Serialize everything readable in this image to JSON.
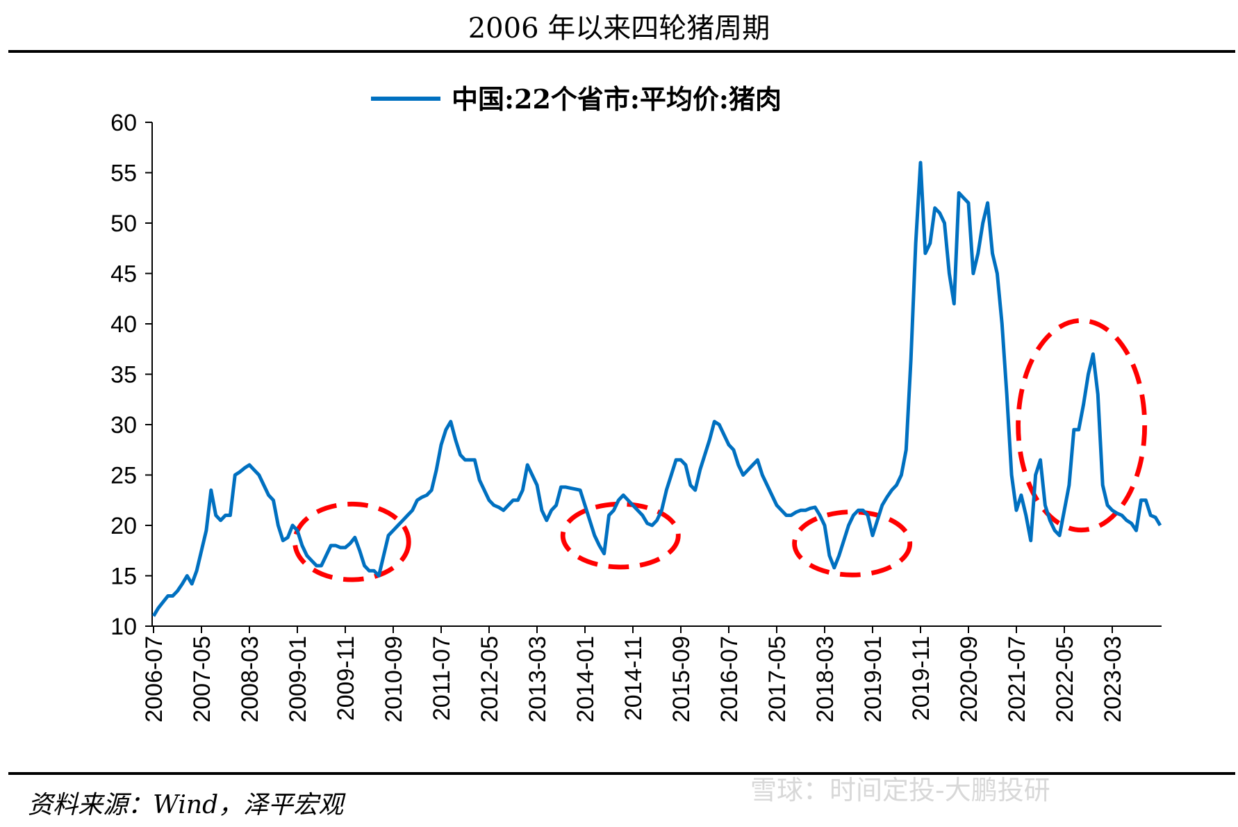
{
  "chart_data": {
    "type": "line",
    "title": "2006 年以来四轮猪周期",
    "source": "资料来源：Wind，泽平宏观",
    "watermark": "雪球：时间定投-大鹏投研",
    "x": [
      "2006-07",
      "2006-08",
      "2006-09",
      "2006-10",
      "2006-11",
      "2006-12",
      "2007-01",
      "2007-02",
      "2007-03",
      "2007-04",
      "2007-05",
      "2007-06",
      "2007-07",
      "2007-08",
      "2007-09",
      "2007-10",
      "2007-11",
      "2007-12",
      "2008-01",
      "2008-02",
      "2008-03",
      "2008-04",
      "2008-05",
      "2008-06",
      "2008-07",
      "2008-08",
      "2008-09",
      "2008-10",
      "2008-11",
      "2008-12",
      "2009-01",
      "2009-02",
      "2009-03",
      "2009-04",
      "2009-05",
      "2009-06",
      "2009-07",
      "2009-08",
      "2009-09",
      "2009-10",
      "2009-11",
      "2009-12",
      "2010-01",
      "2010-02",
      "2010-03",
      "2010-04",
      "2010-05",
      "2010-06",
      "2010-07",
      "2010-08",
      "2010-09",
      "2010-10",
      "2010-11",
      "2010-12",
      "2011-01",
      "2011-02",
      "2011-03",
      "2011-04",
      "2011-05",
      "2011-06",
      "2011-07",
      "2011-08",
      "2011-09",
      "2011-10",
      "2011-11",
      "2011-12",
      "2012-01",
      "2012-02",
      "2012-03",
      "2012-04",
      "2012-05",
      "2012-06",
      "2012-07",
      "2012-08",
      "2012-09",
      "2012-10",
      "2012-11",
      "2012-12",
      "2013-01",
      "2013-02",
      "2013-03",
      "2013-04",
      "2013-05",
      "2013-06",
      "2013-07",
      "2013-08",
      "2013-09",
      "2013-10",
      "2013-11",
      "2013-12",
      "2014-01",
      "2014-02",
      "2014-03",
      "2014-04",
      "2014-05",
      "2014-06",
      "2014-07",
      "2014-08",
      "2014-09",
      "2014-10",
      "2014-11",
      "2014-12",
      "2015-01",
      "2015-02",
      "2015-03",
      "2015-04",
      "2015-05",
      "2015-06",
      "2015-07",
      "2015-08",
      "2015-09",
      "2015-10",
      "2015-11",
      "2015-12",
      "2016-01",
      "2016-02",
      "2016-03",
      "2016-04",
      "2016-05",
      "2016-06",
      "2016-07",
      "2016-08",
      "2016-09",
      "2016-10",
      "2016-11",
      "2016-12",
      "2017-01",
      "2017-02",
      "2017-03",
      "2017-04",
      "2017-05",
      "2017-06",
      "2017-07",
      "2017-08",
      "2017-09",
      "2017-10",
      "2017-11",
      "2017-12",
      "2018-01",
      "2018-02",
      "2018-03",
      "2018-04",
      "2018-05",
      "2018-06",
      "2018-07",
      "2018-08",
      "2018-09",
      "2018-10",
      "2018-11",
      "2018-12",
      "2019-01",
      "2019-02",
      "2019-03",
      "2019-04",
      "2019-05",
      "2019-06",
      "2019-07",
      "2019-08",
      "2019-09",
      "2019-10",
      "2019-11",
      "2019-12",
      "2020-01",
      "2020-02",
      "2020-03",
      "2020-04",
      "2020-05",
      "2020-06",
      "2020-07",
      "2020-08",
      "2020-09",
      "2020-10",
      "2020-11",
      "2020-12",
      "2021-01",
      "2021-02",
      "2021-03",
      "2021-04",
      "2021-05",
      "2021-06",
      "2021-07",
      "2021-08",
      "2021-09",
      "2021-10",
      "2021-11",
      "2021-12",
      "2022-01",
      "2022-02",
      "2022-03",
      "2022-04",
      "2022-05",
      "2022-06",
      "2022-07",
      "2022-08",
      "2022-09",
      "2022-10",
      "2022-11",
      "2022-12",
      "2023-01",
      "2023-02",
      "2023-03",
      "2023-04",
      "2023-05",
      "2023-06",
      "2023-07",
      "2023-08",
      "2023-09",
      "2023-10",
      "2023-11",
      "2023-12",
      "2024-01"
    ],
    "series": [
      {
        "name": "中国:22个省市:平均价:猪肉",
        "color": "#0070c0",
        "values": [
          11,
          11.8,
          12.4,
          13,
          13,
          13.5,
          14.2,
          15,
          14.2,
          15.5,
          17.5,
          19.5,
          23.5,
          21,
          20.5,
          21,
          21,
          25,
          25.3,
          25.7,
          26,
          25.5,
          25,
          24,
          23,
          22.5,
          20,
          18.5,
          18.8,
          20,
          19.5,
          18,
          17,
          16.5,
          16,
          16,
          17,
          18,
          18,
          17.8,
          17.8,
          18.2,
          18.8,
          17.5,
          16,
          15.5,
          15.5,
          15,
          17,
          19,
          19.5,
          20,
          20.5,
          21,
          21.5,
          22.5,
          22.8,
          23,
          23.5,
          25.5,
          28,
          29.5,
          30.3,
          28.5,
          27,
          26.5,
          26.5,
          26.5,
          24.5,
          23.5,
          22.5,
          22,
          21.8,
          21.5,
          22,
          22.5,
          22.5,
          23.5,
          26,
          25,
          24,
          21.5,
          20.5,
          21.5,
          22,
          23.8,
          23.8,
          23.7,
          23.6,
          23.5,
          22,
          20.5,
          19,
          18,
          17.2,
          21,
          21.5,
          22.5,
          23,
          22.5,
          22,
          21.5,
          21,
          20.2,
          20,
          20.5,
          21.5,
          23.5,
          25,
          26.5,
          26.5,
          26,
          24,
          23.5,
          25.5,
          27,
          28.5,
          30.3,
          30,
          29,
          28,
          27.5,
          26,
          25,
          25.5,
          26,
          26.5,
          25,
          24,
          23,
          22,
          21.5,
          21,
          21,
          21.3,
          21.5,
          21.5,
          21.7,
          21.8,
          21,
          20,
          17,
          15.8,
          17,
          18.5,
          20,
          21,
          21.5,
          21.5,
          21,
          19,
          20.5,
          22,
          22.8,
          23.5,
          24,
          25,
          27.5,
          36.5,
          48,
          56,
          47,
          48,
          51.5,
          51,
          50,
          45,
          42,
          53,
          52.5,
          52,
          45,
          47,
          50,
          52,
          47,
          45,
          40,
          33,
          25,
          21.5,
          23,
          21,
          18.5,
          25,
          26.5,
          22,
          20.5,
          19.5,
          19,
          21.5,
          24,
          29.5,
          29.5,
          32,
          35,
          37,
          33,
          24,
          22,
          21.5,
          21.2,
          21,
          20.5,
          20.2,
          19.5,
          22.5,
          22.5,
          21,
          20.8,
          20
        ]
      }
    ],
    "xticks": [
      "2006-07",
      "2007-05",
      "2008-03",
      "2009-01",
      "2009-11",
      "2010-09",
      "2011-07",
      "2012-05",
      "2013-03",
      "2014-01",
      "2014-11",
      "2015-09",
      "2016-07",
      "2017-05",
      "2018-03",
      "2019-01",
      "2019-11",
      "2020-09",
      "2021-07",
      "2022-05",
      "2023-03"
    ],
    "ylim": [
      10,
      60
    ],
    "yticks": [
      10,
      15,
      20,
      25,
      30,
      35,
      40,
      45,
      50,
      55,
      60
    ],
    "grid": false,
    "legend": "top"
  }
}
